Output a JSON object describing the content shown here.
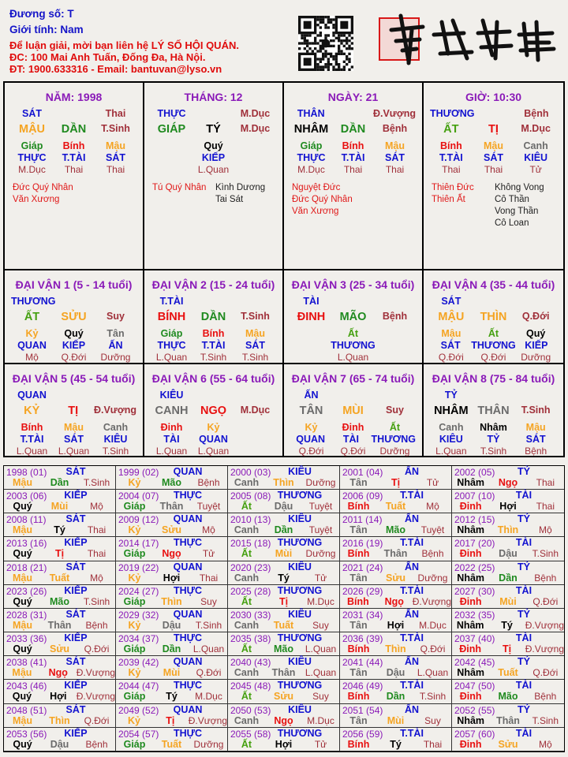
{
  "header": {
    "duong_so": "Đương số: T",
    "gioi_tinh": "Giới tính:   Nam",
    "contact_line1": "Để luận giải, mời bạn liên hệ LÝ SỐ HỘI QUÁN.",
    "contact_line2": "ĐC: 100 Mai Anh Tuấn, Đống Đa, Hà Nội.",
    "contact_line3": "ĐT: 1900.633316 - Email: bantuvan@lyso.vn",
    "logo_text": "南越數理"
  },
  "colors": {
    "title": "#8a1ab8",
    "ten_god": "#1212d0",
    "life_stage": "#a0303a",
    "wood": "#1f8a1f",
    "wood_yin": "#45a010",
    "fire": "#e81010",
    "earth": "#f5a422",
    "metal": "#6b6b6b",
    "water": "#000000",
    "good_star": "#e01818"
  },
  "pillars": [
    {
      "title": "NĂM: 1998",
      "top_god": "SÁT",
      "top_stage": "Thai",
      "stem": "MẬU",
      "branch": "DẦN",
      "stage": "T.Sinh",
      "hidden": [
        {
          "stem": "Giáp",
          "god": "THỰC",
          "stage": "M.Dục"
        },
        {
          "stem": "Bính",
          "god": "T.TÀI",
          "stage": "Thai"
        },
        {
          "stem": "Mậu",
          "god": "SÁT",
          "stage": "Thai"
        }
      ],
      "stars_left": [
        "Đức Quý Nhân",
        "Văn Xương"
      ],
      "stars_right": []
    },
    {
      "title": "THÁNG: 12",
      "top_god": "THỰC",
      "top_stage": "M.Dục",
      "stem": "GIÁP",
      "branch": "TÝ",
      "stage": "M.Dục",
      "hidden": [
        null,
        {
          "stem": "Quý",
          "god": "KIẾP",
          "stage": "L.Quan"
        },
        null
      ],
      "stars_left": [
        "Tú Quý Nhân"
      ],
      "stars_right": [
        "Kình Dương",
        "Tai Sát"
      ]
    },
    {
      "title": "NGÀY: 21",
      "top_god": "THÂN",
      "top_stage": "Đ.Vượng",
      "stem": "NHÂM",
      "branch": "DẦN",
      "stage": "Bệnh",
      "hidden": [
        {
          "stem": "Giáp",
          "god": "THỰC",
          "stage": "M.Dục"
        },
        {
          "stem": "Bính",
          "god": "T.TÀI",
          "stage": "Thai"
        },
        {
          "stem": "Mậu",
          "god": "SÁT",
          "stage": "Thai"
        }
      ],
      "stars_left": [
        "Nguyệt Đức",
        "Đức Quý Nhân",
        "Văn Xương"
      ],
      "stars_right": []
    },
    {
      "title": "GIỜ: 10:30",
      "top_god": "THƯƠNG",
      "top_stage": "Bệnh",
      "stem": "ẤT",
      "branch": "TỊ",
      "stage": "M.Dục",
      "hidden": [
        {
          "stem": "Bính",
          "god": "T.TÀI",
          "stage": "Thai"
        },
        {
          "stem": "Mậu",
          "god": "SÁT",
          "stage": "Thai"
        },
        {
          "stem": "Canh",
          "god": "KIÊU",
          "stage": "Tử"
        }
      ],
      "stars_left": [
        "Thiên Đức",
        "Thiên Ất"
      ],
      "stars_right": [
        "Không Vong",
        "Cô Thần",
        "Vong Thần",
        "Cô Loan"
      ]
    }
  ],
  "dai_van": [
    {
      "title": "ĐẠI VẬN 1 (5 - 14 tuổi)",
      "top_god": "THƯƠNG",
      "stem": "ẤT",
      "branch": "SỬU",
      "stage": "Suy",
      "hidden": [
        {
          "stem": "Kỷ",
          "god": "QUAN",
          "stage": "Mộ"
        },
        {
          "stem": "Quý",
          "god": "KIẾP",
          "stage": "Q.Đới"
        },
        {
          "stem": "Tân",
          "god": "ẤN",
          "stage": "Dưỡng"
        }
      ]
    },
    {
      "title": "ĐẠI VẬN 2 (15 - 24 tuổi)",
      "top_god": "T.TÀI",
      "stem": "BÍNH",
      "branch": "DẦN",
      "stage": "T.Sinh",
      "hidden": [
        {
          "stem": "Giáp",
          "god": "THỰC",
          "stage": "L.Quan"
        },
        {
          "stem": "Bính",
          "god": "T.TÀI",
          "stage": "T.Sinh"
        },
        {
          "stem": "Mậu",
          "god": "SÁT",
          "stage": "T.Sinh"
        }
      ]
    },
    {
      "title": "ĐẠI VẬN 3 (25 - 34 tuổi)",
      "top_god": "TÀI",
      "stem": "ĐINH",
      "branch": "MÃO",
      "stage": "Bệnh",
      "hidden": [
        null,
        {
          "stem": "Ất",
          "god": "THƯƠNG",
          "stage": "L.Quan"
        },
        null
      ]
    },
    {
      "title": "ĐẠI VẬN 4 (35 - 44 tuổi)",
      "top_god": "SÁT",
      "stem": "MẬU",
      "branch": "THÌN",
      "stage": "Q.Đới",
      "hidden": [
        {
          "stem": "Mậu",
          "god": "SÁT",
          "stage": "Q.Đới"
        },
        {
          "stem": "Ất",
          "god": "THƯƠNG",
          "stage": "Q.Đới"
        },
        {
          "stem": "Quý",
          "god": "KIẾP",
          "stage": "Dưỡng"
        }
      ]
    },
    {
      "title": "ĐẠI VẬN 5 (45 - 54 tuổi)",
      "top_god": "QUAN",
      "stem": "KỶ",
      "branch": "TỊ",
      "stage": "Đ.Vượng",
      "hidden": [
        {
          "stem": "Bính",
          "god": "T.TÀI",
          "stage": "L.Quan"
        },
        {
          "stem": "Mậu",
          "god": "SÁT",
          "stage": "L.Quan"
        },
        {
          "stem": "Canh",
          "god": "KIÊU",
          "stage": "T.Sinh"
        }
      ]
    },
    {
      "title": "ĐẠI VẬN 6 (55 - 64 tuổi)",
      "top_god": "KIÊU",
      "stem": "CANH",
      "branch": "NGỌ",
      "stage": "M.Dục",
      "hidden": [
        {
          "stem": "Đinh",
          "god": "TÀI",
          "stage": "L.Quan"
        },
        {
          "stem": "Kỷ",
          "god": "QUAN",
          "stage": "L.Quan"
        },
        null
      ]
    },
    {
      "title": "ĐẠI VẬN 7 (65 - 74 tuổi)",
      "top_god": "ẤN",
      "stem": "TÂN",
      "branch": "MÙI",
      "stage": "Suy",
      "hidden": [
        {
          "stem": "Kỷ",
          "god": "QUAN",
          "stage": "Q.Đới"
        },
        {
          "stem": "Đinh",
          "god": "TÀI",
          "stage": "Q.Đới"
        },
        {
          "stem": "Ất",
          "god": "THƯƠNG",
          "stage": "Dưỡng"
        }
      ]
    },
    {
      "title": "ĐẠI VẬN 8 (75 - 84 tuổi)",
      "top_god": "TỶ",
      "stem": "NHÂM",
      "branch": "THÂN",
      "stage": "T.Sinh",
      "hidden": [
        {
          "stem": "Canh",
          "god": "KIÊU",
          "stage": "L.Quan"
        },
        {
          "stem": "Nhâm",
          "god": "TỶ",
          "stage": "T.Sinh"
        },
        {
          "stem": "Mậu",
          "god": "SÁT",
          "stage": "Bệnh"
        }
      ]
    }
  ],
  "years": [
    [
      "1998 (01)",
      "SÁT",
      "Mậu",
      "Dần",
      "T.Sinh"
    ],
    [
      "1999 (02)",
      "QUAN",
      "Kỷ",
      "Mão",
      "Bệnh"
    ],
    [
      "2000 (03)",
      "KIÊU",
      "Canh",
      "Thìn",
      "Dưỡng"
    ],
    [
      "2001 (04)",
      "ẤN",
      "Tân",
      "Tị",
      "Tử"
    ],
    [
      "2002 (05)",
      "TỶ",
      "Nhâm",
      "Ngọ",
      "Thai"
    ],
    [
      "2003 (06)",
      "KIẾP",
      "Quý",
      "Mùi",
      "Mộ"
    ],
    [
      "2004 (07)",
      "THỰC",
      "Giáp",
      "Thân",
      "Tuyệt"
    ],
    [
      "2005 (08)",
      "THƯƠNG",
      "Ất",
      "Dậu",
      "Tuyệt"
    ],
    [
      "2006 (09)",
      "T.TÀI",
      "Bính",
      "Tuất",
      "Mộ"
    ],
    [
      "2007 (10)",
      "TÀI",
      "Đinh",
      "Hợi",
      "Thai"
    ],
    [
      "2008 (11)",
      "SÁT",
      "Mậu",
      "Tý",
      "Thai"
    ],
    [
      "2009 (12)",
      "QUAN",
      "Kỷ",
      "Sửu",
      "Mộ"
    ],
    [
      "2010 (13)",
      "KIÊU",
      "Canh",
      "Dần",
      "Tuyệt"
    ],
    [
      "2011 (14)",
      "ẤN",
      "Tân",
      "Mão",
      "Tuyệt"
    ],
    [
      "2012 (15)",
      "TỶ",
      "Nhâm",
      "Thìn",
      "Mộ"
    ],
    [
      "2013 (16)",
      "KIẾP",
      "Quý",
      "Tị",
      "Thai"
    ],
    [
      "2014 (17)",
      "THỰC",
      "Giáp",
      "Ngọ",
      "Tử"
    ],
    [
      "2015 (18)",
      "THƯƠNG",
      "Ất",
      "Mùi",
      "Dưỡng"
    ],
    [
      "2016 (19)",
      "T.TÀI",
      "Bính",
      "Thân",
      "Bệnh"
    ],
    [
      "2017 (20)",
      "TÀI",
      "Đinh",
      "Dậu",
      "T.Sinh"
    ],
    [
      "2018 (21)",
      "SÁT",
      "Mậu",
      "Tuất",
      "Mộ"
    ],
    [
      "2019 (22)",
      "QUAN",
      "Kỷ",
      "Hợi",
      "Thai"
    ],
    [
      "2020 (23)",
      "KIÊU",
      "Canh",
      "Tý",
      "Tử"
    ],
    [
      "2021 (24)",
      "ẤN",
      "Tân",
      "Sửu",
      "Dưỡng"
    ],
    [
      "2022 (25)",
      "TỶ",
      "Nhâm",
      "Dần",
      "Bệnh"
    ],
    [
      "2023 (26)",
      "KIẾP",
      "Quý",
      "Mão",
      "T.Sinh"
    ],
    [
      "2024 (27)",
      "THỰC",
      "Giáp",
      "Thìn",
      "Suy"
    ],
    [
      "2025 (28)",
      "THƯƠNG",
      "Ất",
      "Tị",
      "M.Dục"
    ],
    [
      "2026 (29)",
      "T.TÀI",
      "Bính",
      "Ngọ",
      "Đ.Vượng"
    ],
    [
      "2027 (30)",
      "TÀI",
      "Đinh",
      "Mùi",
      "Q.Đới"
    ],
    [
      "2028 (31)",
      "SÁT",
      "Mậu",
      "Thân",
      "Bệnh"
    ],
    [
      "2029 (32)",
      "QUAN",
      "Kỷ",
      "Dậu",
      "T.Sinh"
    ],
    [
      "2030 (33)",
      "KIÊU",
      "Canh",
      "Tuất",
      "Suy"
    ],
    [
      "2031 (34)",
      "ẤN",
      "Tân",
      "Hợi",
      "M.Dục"
    ],
    [
      "2032 (35)",
      "TỶ",
      "Nhâm",
      "Tý",
      "Đ.Vượng"
    ],
    [
      "2033 (36)",
      "KIẾP",
      "Quý",
      "Sửu",
      "Q.Đới"
    ],
    [
      "2034 (37)",
      "THỰC",
      "Giáp",
      "Dần",
      "L.Quan"
    ],
    [
      "2035 (38)",
      "THƯƠNG",
      "Ất",
      "Mão",
      "L.Quan"
    ],
    [
      "2036 (39)",
      "T.TÀI",
      "Bính",
      "Thìn",
      "Q.Đới"
    ],
    [
      "2037 (40)",
      "TÀI",
      "Đinh",
      "Tị",
      "Đ.Vượng"
    ],
    [
      "2038 (41)",
      "SÁT",
      "Mậu",
      "Ngọ",
      "Đ.Vượng"
    ],
    [
      "2039 (42)",
      "QUAN",
      "Kỷ",
      "Mùi",
      "Q.Đới"
    ],
    [
      "2040 (43)",
      "KIÊU",
      "Canh",
      "Thân",
      "L.Quan"
    ],
    [
      "2041 (44)",
      "ẤN",
      "Tân",
      "Dậu",
      "L.Quan"
    ],
    [
      "2042 (45)",
      "TỶ",
      "Nhâm",
      "Tuất",
      "Q.Đới"
    ],
    [
      "2043 (46)",
      "KIẾP",
      "Quý",
      "Hợi",
      "Đ.Vượng"
    ],
    [
      "2044 (47)",
      "THỰC",
      "Giáp",
      "Tý",
      "M.Dục"
    ],
    [
      "2045 (48)",
      "THƯƠNG",
      "Ất",
      "Sửu",
      "Suy"
    ],
    [
      "2046 (49)",
      "T.TÀI",
      "Bính",
      "Dần",
      "T.Sinh"
    ],
    [
      "2047 (50)",
      "TÀI",
      "Đinh",
      "Mão",
      "Bệnh"
    ],
    [
      "2048 (51)",
      "SÁT",
      "Mậu",
      "Thìn",
      "Q.Đới"
    ],
    [
      "2049 (52)",
      "QUAN",
      "Kỷ",
      "Tị",
      "Đ.Vượng"
    ],
    [
      "2050 (53)",
      "KIÊU",
      "Canh",
      "Ngọ",
      "M.Dục"
    ],
    [
      "2051 (54)",
      "ẤN",
      "Tân",
      "Mùi",
      "Suy"
    ],
    [
      "2052 (55)",
      "TỶ",
      "Nhâm",
      "Thân",
      "T.Sinh"
    ],
    [
      "2053 (56)",
      "KIẾP",
      "Quý",
      "Dậu",
      "Bệnh"
    ],
    [
      "2054 (57)",
      "THỰC",
      "Giáp",
      "Tuất",
      "Dưỡng"
    ],
    [
      "2055 (58)",
      "THƯƠNG",
      "Ất",
      "Hợi",
      "Tử"
    ],
    [
      "2056 (59)",
      "T.TÀI",
      "Bính",
      "Tý",
      "Thai"
    ],
    [
      "2057 (60)",
      "TÀI",
      "Đinh",
      "Sửu",
      "Mộ"
    ]
  ]
}
